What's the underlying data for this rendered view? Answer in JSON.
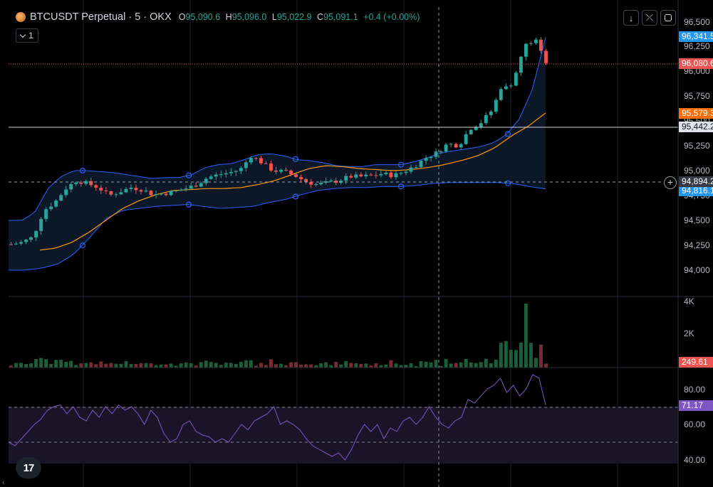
{
  "legend": {
    "symbol": "BTCUSDT Perpetual · 5 · OKX",
    "o_label": "O",
    "o_value": "95,090.6",
    "h_label": "H",
    "h_value": "95,096.0",
    "l_label": "L",
    "l_value": "95,022.9",
    "c_label": "C",
    "c_value": "95,091.1",
    "change": "+0.4 (+0.00%)",
    "indicators_count": "1"
  },
  "toolbar_icons": [
    "download-arrow-icon",
    "collapse-arrows-icon",
    "fullscreen-icon"
  ],
  "colors": {
    "up": "#26a69a",
    "down": "#ef5350",
    "bb_line": "#2962ff",
    "bb_fill": "#1c2a3a",
    "ema": "#ff9800",
    "rsi_line": "#7e57c2",
    "rsi_band": "#1a1428",
    "grid": "#1e222d"
  },
  "price_axis": {
    "ticks": [
      "96,500",
      "96,250",
      "96,000",
      "95,750",
      "95,500",
      "95,250",
      "95,000",
      "94,750",
      "94,500",
      "94,250",
      "94,000"
    ]
  },
  "price_tags": {
    "bb_upper": "96,341.5",
    "last_price": "96,080.6",
    "ema": "95,579.3",
    "horizontal_line": "95,442.2",
    "crosshair": "94,894.2",
    "bb_lower": "94,816.1"
  },
  "volume_axis": {
    "ticks": [
      "4K",
      "2K"
    ],
    "last_volume": "249.61"
  },
  "rsi_axis": {
    "ticks": [
      "80.00",
      "60.00",
      "40.00"
    ],
    "last_rsi": "71.17"
  },
  "chart_data": {
    "type": "candlestick",
    "price_range": [
      93800,
      96600
    ],
    "candles_count": 108,
    "anchor_close_path": [
      94260,
      94280,
      94330,
      94600,
      94680,
      94820,
      94900,
      94870,
      94830,
      94750,
      94790,
      94830,
      94810,
      94760,
      94770,
      94790,
      94820,
      94860,
      94930,
      94960,
      94980,
      95010,
      95150,
      95080,
      95000,
      94990,
      94950,
      94890,
      94860,
      94880,
      94900,
      94940,
      94940,
      94950,
      94970,
      94950,
      94990,
      95050,
      95130,
      95180,
      95270,
      95250,
      95420,
      95480,
      95600,
      95850,
      95880,
      96250,
      96320,
      96080
    ],
    "bb_upper_path": [
      94500,
      94500,
      94580,
      94820,
      94940,
      95000,
      95000,
      94990,
      94980,
      94960,
      94940,
      94920,
      94930,
      94930,
      94960,
      95030,
      95060,
      95070,
      95110,
      95160,
      95170,
      95150,
      95110,
      95100,
      95080,
      95050,
      95040,
      95040,
      95060,
      95060,
      95060,
      95090,
      95130,
      95180,
      95200,
      95220,
      95240,
      95280,
      95360,
      95520,
      95820,
      96340
    ],
    "bb_lower_path": [
      94000,
      94000,
      94020,
      94060,
      94160,
      94330,
      94520,
      94600,
      94620,
      94640,
      94650,
      94660,
      94640,
      94620,
      94630,
      94640,
      94680,
      94710,
      94760,
      94800,
      94820,
      94830,
      94830,
      94840,
      94840,
      94850,
      94870,
      94880,
      94880,
      94880,
      94880,
      94870,
      94840,
      94816
    ],
    "ema_path": [
      94200,
      94220,
      94280,
      94380,
      94500,
      94620,
      94700,
      94760,
      94800,
      94810,
      94820,
      94820,
      94830,
      94860,
      94900,
      94960,
      95020,
      95050,
      95040,
      95020,
      95010,
      95000,
      95010,
      95030,
      95060,
      95100,
      95150,
      95230,
      95350,
      95450,
      95579
    ],
    "volume_max": 4000,
    "rsi_range": [
      35,
      90
    ],
    "rsi_bands": [
      70,
      50
    ],
    "rsi_path": [
      50,
      48,
      52,
      56,
      60,
      63,
      68,
      70,
      71,
      66,
      70,
      64,
      62,
      68,
      64,
      70,
      66,
      71,
      68,
      70,
      66,
      60,
      68,
      64,
      55,
      50,
      52,
      60,
      62,
      56,
      54,
      53,
      50,
      52,
      50,
      55,
      60,
      57,
      62,
      64,
      66,
      70,
      60,
      62,
      60,
      57,
      52,
      48,
      46,
      44,
      42,
      44,
      40,
      46,
      54,
      60,
      56,
      60,
      52,
      58,
      56,
      62,
      64,
      60,
      64,
      70,
      64,
      60,
      58,
      62,
      64,
      74,
      72,
      76,
      80,
      82,
      86,
      78,
      82,
      76,
      80,
      88,
      86,
      71
    ]
  }
}
